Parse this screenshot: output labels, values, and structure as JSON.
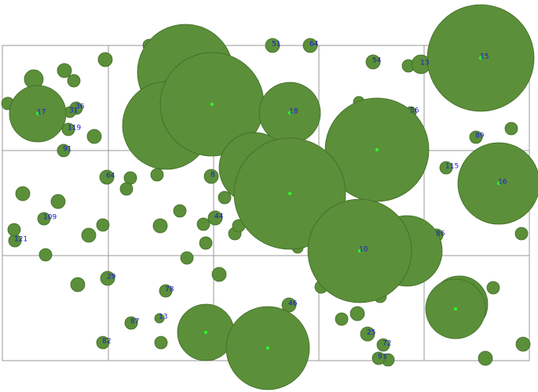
{
  "chart_data": {
    "type": "scatter",
    "color": "#5b8f39",
    "xlim": [
      0,
      671
    ],
    "ylim": [
      0,
      402
    ],
    "x": [
      40,
      79,
      91,
      131,
      7,
      94,
      86,
      84,
      78,
      117,
      187,
      344,
      392,
      472,
      517,
      533,
      454,
      520,
      603,
      648,
      565,
      661,
      553,
      625,
      663,
      615,
      491,
      479,
      485,
      465,
      452,
      432,
      481,
      406,
      365,
      376,
      296,
      301,
      271,
      259,
      256,
      283,
      266,
      226,
      201,
      235,
      276,
      208,
      200,
      202,
      164,
      128,
      134,
      96,
      55,
      16,
      15,
      53,
      71,
      26,
      110,
      128,
      133,
      163,
      158,
      197,
      45,
      233,
      209,
      267,
      366,
      321,
      477,
      515,
      366,
      455,
      632,
      609,
      582,
      577,
      259,
      338
    ],
    "y": [
      359,
      370,
      357,
      384,
      328,
      322,
      317,
      295,
      268,
      286,
      402,
      402,
      402,
      381,
      376,
      378,
      330,
      317,
      285,
      296,
      246,
      162,
      160,
      93,
      21,
      3,
      1,
      3,
      20,
      34,
      60,
      53,
      82,
      94,
      71,
      144,
      162,
      172,
      182,
      150,
      174,
      208,
      235,
      191,
      172,
      131,
      110,
      89,
      54,
      23,
      48,
      23,
      105,
      97,
      135,
      153,
      167,
      181,
      203,
      213,
      160,
      173,
      234,
      233,
      219,
      237,
      315,
      368,
      300,
      327,
      316,
      246,
      269,
      140,
      213,
      140,
      226,
      386,
      72,
      66,
      36,
      16
    ],
    "sizes": [
      12,
      9,
      8,
      9,
      8,
      8,
      7,
      8,
      8,
      9,
      8,
      9,
      9,
      9,
      8,
      12,
      7,
      7,
      8,
      8,
      8,
      8,
      8,
      8,
      9,
      9,
      8,
      8,
      8,
      9,
      9,
      8,
      8,
      8,
      9,
      7,
      8,
      8,
      9,
      8,
      8,
      8,
      9,
      8,
      9,
      8,
      9,
      8,
      6,
      8,
      8,
      8,
      9,
      9,
      8,
      8,
      8,
      8,
      9,
      9,
      9,
      8,
      9,
      8,
      8,
      8,
      36,
      61,
      56,
      66,
      39,
      45,
      66,
      45,
      71,
      66,
      52,
      68,
      36,
      38,
      36,
      53
    ],
    "labels": [
      null,
      null,
      null,
      null,
      null,
      "36",
      "31",
      "119",
      "91",
      null,
      null,
      "51",
      "64",
      "54",
      null,
      "13",
      null,
      "56",
      "89",
      null,
      "115",
      null,
      "86",
      null,
      null,
      null,
      null,
      "93",
      "72",
      "25",
      null,
      null,
      null,
      null,
      "46",
      null,
      null,
      null,
      "44",
      null,
      null,
      null,
      "8",
      null,
      null,
      null,
      null,
      "78",
      "13",
      null,
      "87",
      "82",
      "29",
      null,
      null,
      "121",
      null,
      "109",
      null,
      null,
      null,
      null,
      "64",
      null,
      null,
      null,
      "17",
      null,
      null,
      null,
      "18",
      null,
      null,
      null,
      null,
      "10",
      "16",
      "15",
      null,
      null,
      null,
      null
    ]
  }
}
